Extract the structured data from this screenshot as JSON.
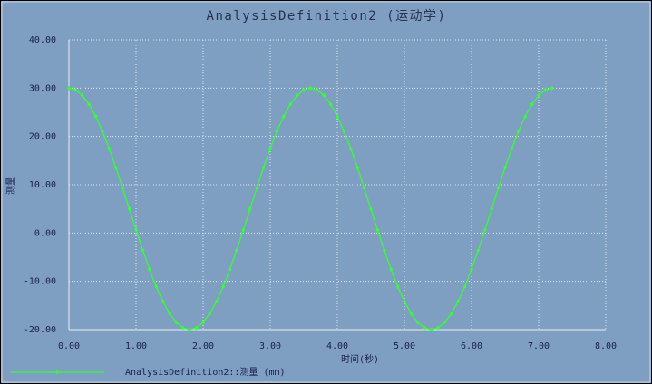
{
  "chart_data": {
    "type": "line",
    "title": "AnalysisDefinition2 (运动学)",
    "x_label": "时间(秒)",
    "y_label": "测量",
    "x": [
      0,
      0.1,
      0.2,
      0.3,
      0.4,
      0.5,
      0.6,
      0.7,
      0.8,
      0.9,
      1,
      1.1,
      1.2,
      1.3,
      1.4,
      1.5,
      1.6,
      1.7,
      1.8,
      1.9,
      2,
      2.1,
      2.2,
      2.3,
      2.4,
      2.5,
      2.6,
      2.7,
      2.8,
      2.9,
      3,
      3.1,
      3.2,
      3.3,
      3.4,
      3.5,
      3.6,
      3.7,
      3.8,
      3.9,
      4,
      4.1,
      4.2,
      4.3,
      4.4,
      4.5,
      4.6,
      4.7,
      4.8,
      4.9,
      5,
      5.1,
      5.2,
      5.3,
      5.4,
      5.5,
      5.6,
      5.7,
      5.8,
      5.9,
      6,
      6.1,
      6.2,
      6.3,
      6.4,
      6.5,
      6.6,
      6.7,
      6.8,
      6.9,
      7,
      7.1,
      7.2
    ],
    "series": [
      {
        "name": "AnalysisDefinition2::测量 (mm)",
        "color": "#33ff33",
        "values": [
          30,
          29.62,
          28.49,
          26.65,
          24.15,
          21.07,
          17.5,
          13.55,
          9.34,
          5,
          0.66,
          -3.55,
          -7.5,
          -11.07,
          -14.15,
          -16.65,
          -18.49,
          -19.62,
          -20,
          -19.62,
          -18.49,
          -16.65,
          -14.15,
          -11.07,
          -7.5,
          -3.55,
          0.66,
          5,
          9.34,
          13.55,
          17.5,
          21.07,
          24.15,
          26.65,
          28.49,
          29.62,
          30,
          29.62,
          28.49,
          26.65,
          24.15,
          21.07,
          17.5,
          13.55,
          9.34,
          5,
          0.66,
          -3.55,
          -7.5,
          -11.07,
          -14.15,
          -16.65,
          -18.49,
          -19.62,
          -20,
          -19.62,
          -18.49,
          -16.65,
          -14.15,
          -11.07,
          -7.5,
          -3.55,
          0.66,
          5,
          9.34,
          13.55,
          17.5,
          21.07,
          24.15,
          26.65,
          28.49,
          29.62,
          30
        ]
      }
    ],
    "xlim": [
      0,
      8
    ],
    "ylim": [
      -20,
      40
    ],
    "xticks": [
      {
        "value": 0,
        "label": "0.00"
      },
      {
        "value": 1,
        "label": "1.00"
      },
      {
        "value": 2,
        "label": "2.00"
      },
      {
        "value": 3,
        "label": "3.00"
      },
      {
        "value": 4,
        "label": "4.00"
      },
      {
        "value": 5,
        "label": "5.00"
      },
      {
        "value": 6,
        "label": "6.00"
      },
      {
        "value": 7,
        "label": "7.00"
      },
      {
        "value": 8,
        "label": "8.00"
      }
    ],
    "yticks": [
      {
        "value": -20,
        "label": "-20.00"
      },
      {
        "value": -10,
        "label": "-10.00"
      },
      {
        "value": 0,
        "label": "0.00"
      },
      {
        "value": 10,
        "label": "10.00"
      },
      {
        "value": 20,
        "label": "20.00"
      },
      {
        "value": 30,
        "label": "30.00"
      },
      {
        "value": 40,
        "label": "40.00"
      }
    ],
    "grid": true
  }
}
